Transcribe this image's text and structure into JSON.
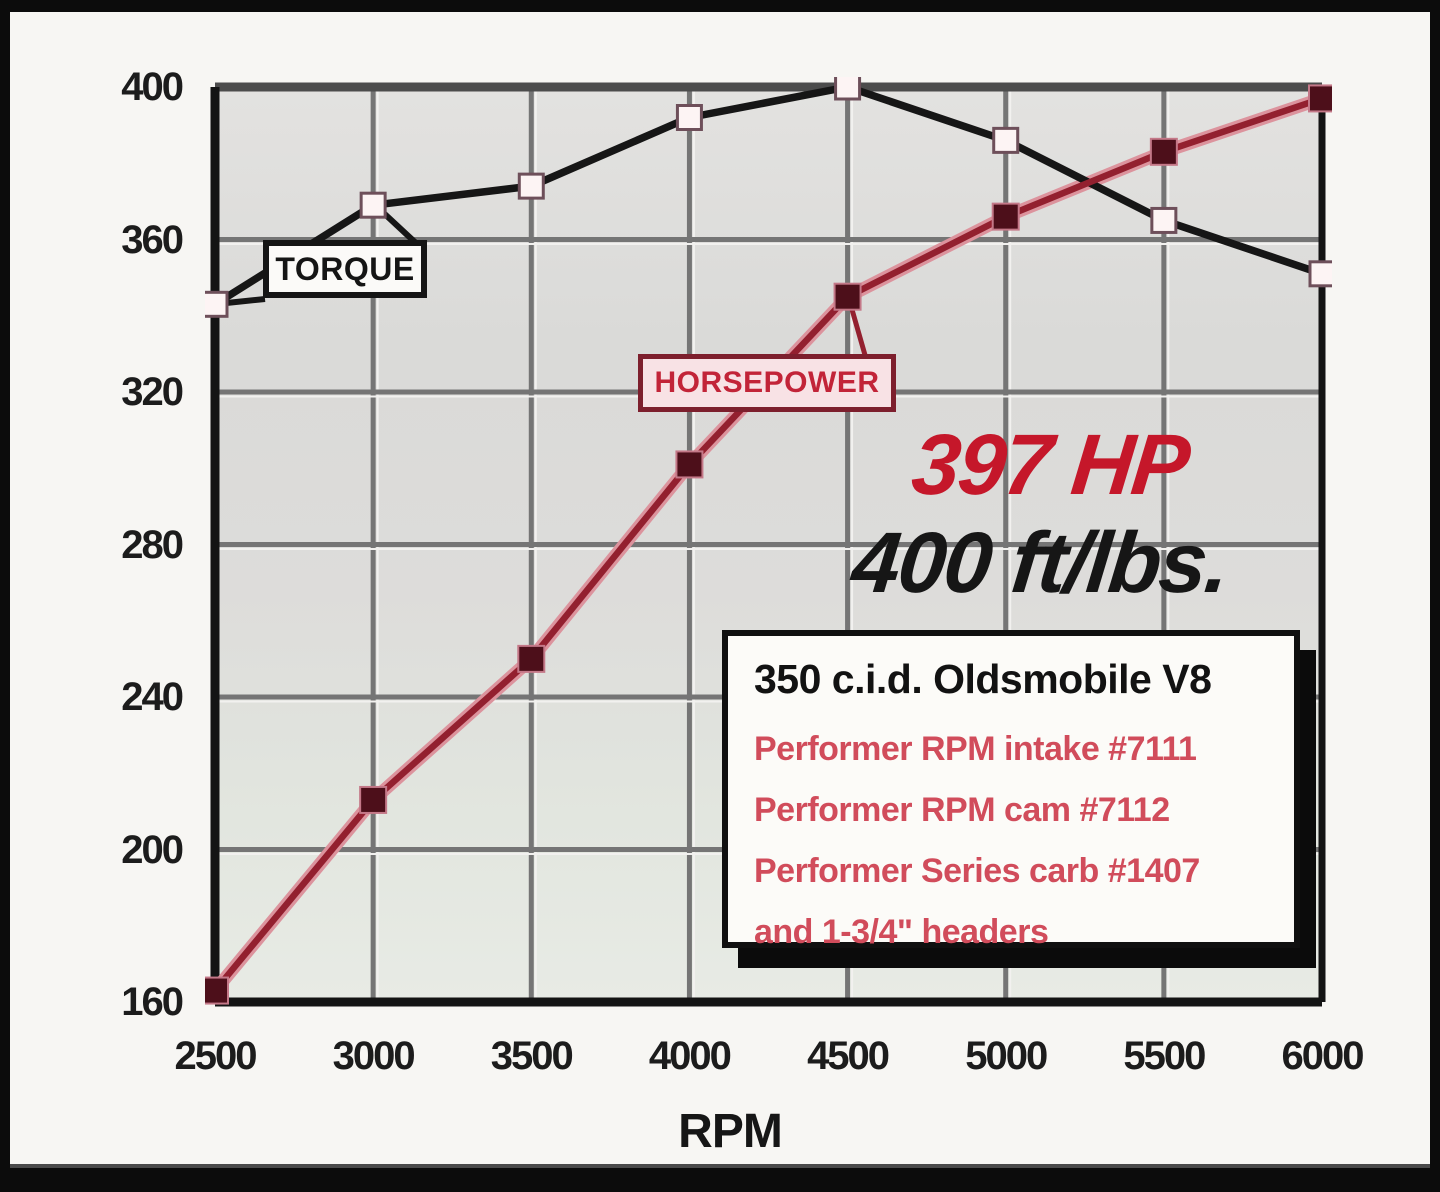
{
  "chart_data": {
    "type": "line",
    "title": "",
    "x": [
      2500,
      3000,
      3500,
      4000,
      4500,
      5000,
      5500,
      6000
    ],
    "xlabel": "RPM",
    "ylim": [
      160,
      400
    ],
    "yticks": [
      400,
      360,
      320,
      280,
      240,
      200,
      160
    ],
    "grid": true,
    "legend_position": "inline callout boxes on curves",
    "series": [
      {
        "name": "TORQUE",
        "units": "ft/lbs",
        "values": [
          343,
          369,
          374,
          392,
          400,
          386,
          365,
          351
        ],
        "line_color": "#161616",
        "marker": "open-square",
        "marker_fill": "#fdf4f4",
        "marker_stroke": "#6e4f5a"
      },
      {
        "name": "HORSEPOWER",
        "units": "HP",
        "values": [
          163,
          213,
          250,
          301,
          345,
          366,
          383,
          397
        ],
        "line_color": "#93202f",
        "halo_color": "#dc939d",
        "marker": "filled-square",
        "marker_fill": "#4d0f1a",
        "marker_stroke": "#c47888"
      }
    ]
  },
  "callouts": {
    "torque": "TORQUE",
    "horsepower": "HORSEPOWER"
  },
  "annotations": {
    "peak_hp": "397 HP",
    "peak_torque": "400 ft/lbs."
  },
  "info_box": {
    "title": "350 c.i.d. Oldsmobile V8",
    "lines": [
      "Performer RPM intake #7111",
      "Performer RPM cam #7112",
      "Performer Series carb #1407",
      "and 1-3/4\" headers"
    ]
  },
  "colors": {
    "grid": "#757575",
    "grid_highlight": "#f2f1ef",
    "axis": "#141414",
    "top_grid": "#4c4c4c",
    "peak_hp_text": "#c5172a",
    "peak_torque_text": "#161616",
    "info_red": "#d14c5b"
  }
}
